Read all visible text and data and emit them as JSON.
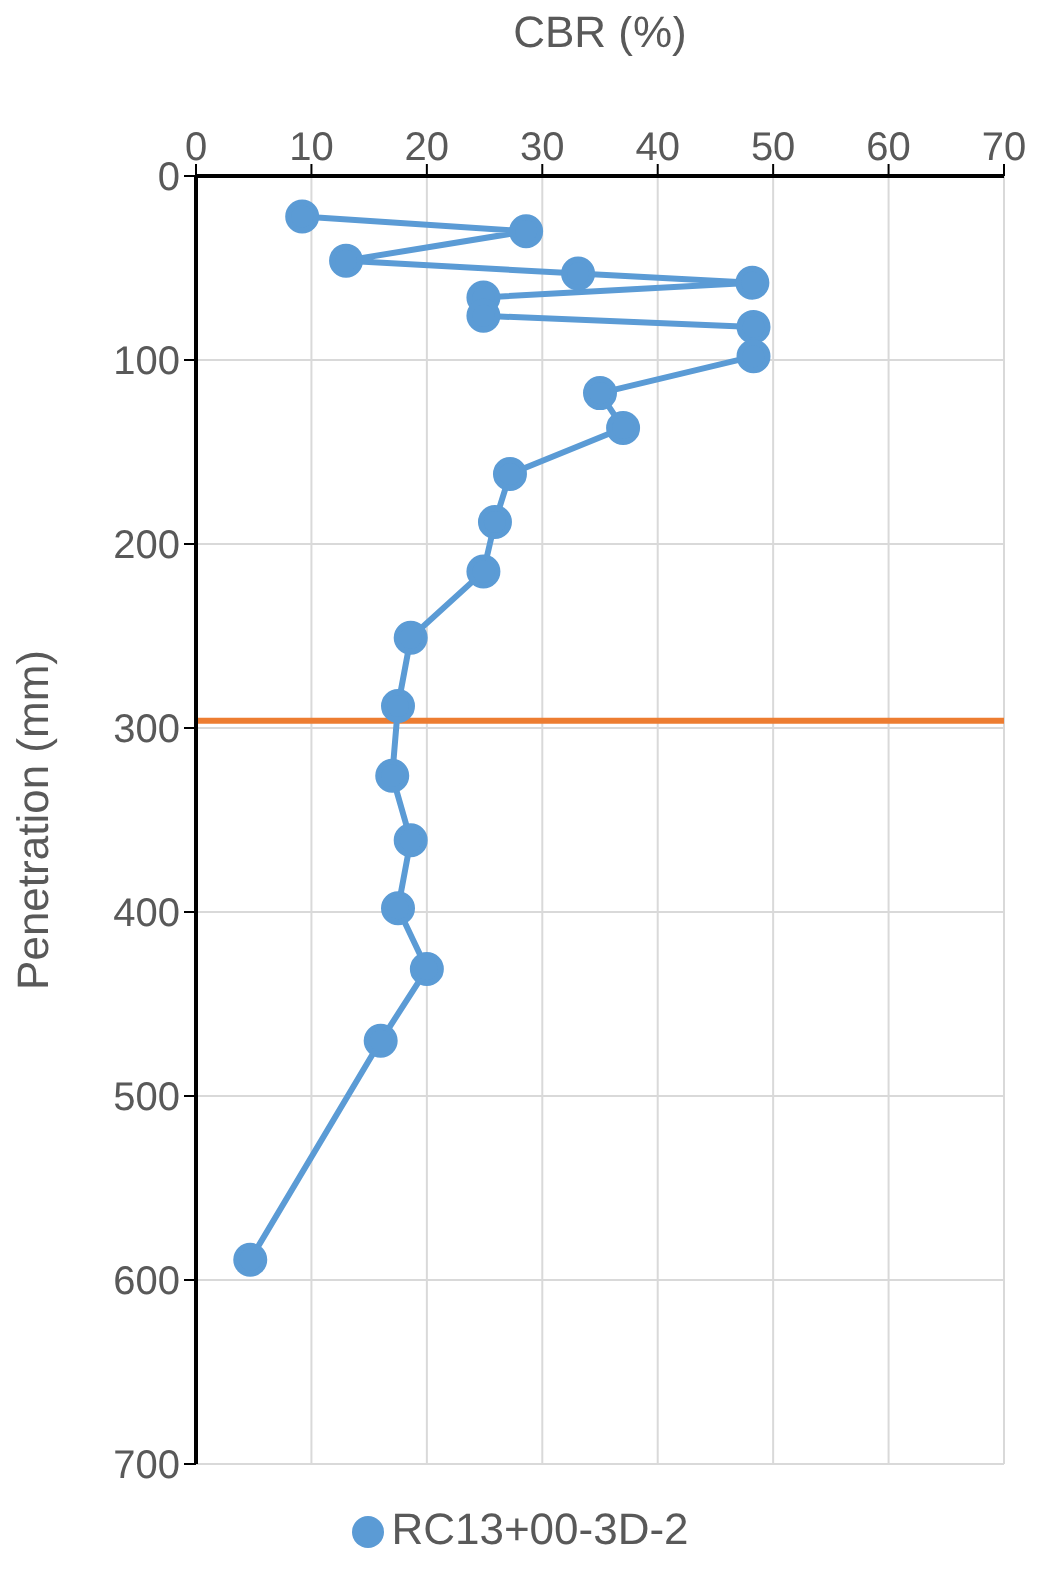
{
  "chart_data": {
    "type": "line",
    "xlabel": "CBR (%)",
    "ylabel": "Penetration (mm)",
    "xlim": [
      0,
      70
    ],
    "xticks": [
      0,
      10,
      20,
      30,
      40,
      50,
      60,
      70
    ],
    "ylim": [
      700,
      0
    ],
    "yticks": [
      0,
      100,
      200,
      300,
      400,
      500,
      600,
      700
    ],
    "grid": true,
    "legend": "bottom",
    "marker": "circle",
    "line_style": "solid",
    "series": [
      {
        "name": "RC13+00-3D-2",
        "color": "#5b9bd5",
        "x": [
          9.2,
          28.6,
          13.0,
          33.1,
          48.2,
          24.9,
          24.9,
          48.3,
          48.3,
          35.0,
          37.0,
          27.2,
          25.9,
          24.9,
          18.6,
          17.5,
          17.0,
          18.6,
          17.5,
          20.0,
          16.0,
          4.7
        ],
        "values": [
          22,
          30,
          46,
          53,
          58,
          66,
          76,
          82,
          98,
          118,
          137,
          162,
          188,
          215,
          251,
          288,
          326,
          361,
          398,
          431,
          470,
          589
        ]
      }
    ],
    "ref_lines": [
      {
        "axis": "y",
        "value": 296,
        "color": "#ed7d31",
        "line_style": "solid"
      }
    ]
  }
}
